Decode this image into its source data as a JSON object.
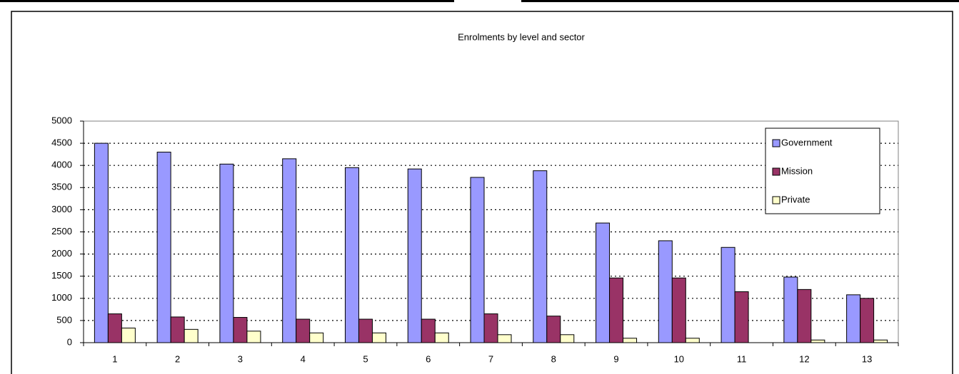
{
  "chart_data": {
    "type": "bar",
    "title": "Enrolments by level and sector",
    "categories": [
      "1",
      "2",
      "3",
      "4",
      "5",
      "6",
      "7",
      "8",
      "9",
      "10",
      "11",
      "12",
      "13"
    ],
    "series": [
      {
        "name": "Government",
        "color": "#9999ff",
        "values": [
          4500,
          4300,
          4030,
          4150,
          3950,
          3920,
          3730,
          3880,
          2700,
          2300,
          2150,
          1480,
          1080
        ]
      },
      {
        "name": "Mission",
        "color": "#993366",
        "values": [
          650,
          580,
          570,
          530,
          530,
          530,
          650,
          600,
          1460,
          1460,
          1150,
          1200,
          1000
        ]
      },
      {
        "name": "Private",
        "color": "#ffffcc",
        "values": [
          330,
          300,
          260,
          220,
          220,
          220,
          180,
          180,
          100,
          100,
          0,
          60,
          60
        ]
      }
    ],
    "ylim": [
      0,
      5000
    ],
    "yticks": [
      0,
      500,
      1000,
      1500,
      2000,
      2500,
      3000,
      3500,
      4000,
      4500,
      5000
    ],
    "grid": true,
    "legend": "top-right"
  }
}
